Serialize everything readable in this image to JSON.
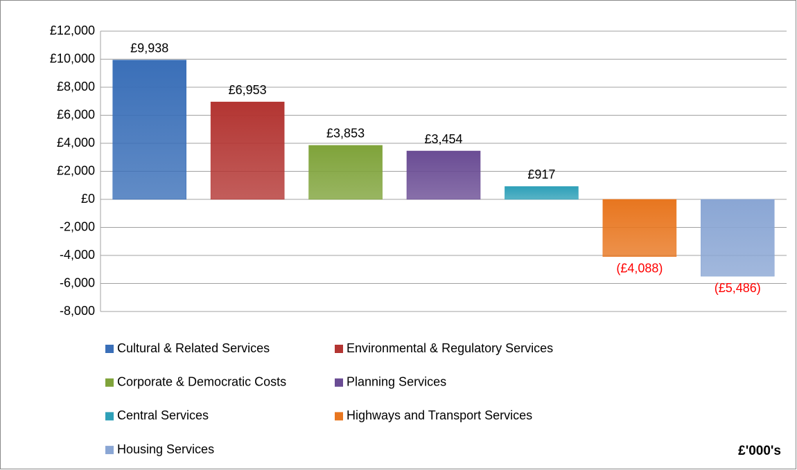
{
  "chart_data": {
    "type": "bar",
    "series": [
      {
        "name": "Cultural & Related Services",
        "color": "#3a6fb8",
        "values": [
          9938
        ],
        "value_labels": [
          "£9,938"
        ]
      },
      {
        "name": "Environmental & Regulatory Services",
        "color": "#b33532",
        "values": [
          6953
        ],
        "value_labels": [
          "£6,953"
        ]
      },
      {
        "name": "Corporate & Democratic Costs",
        "color": "#7fa33a",
        "values": [
          3853
        ],
        "value_labels": [
          "£3,853"
        ]
      },
      {
        "name": "Planning Services",
        "color": "#6a4c94",
        "values": [
          3454
        ],
        "value_labels": [
          "£3,454"
        ]
      },
      {
        "name": "Central Services",
        "color": "#2ea0b8",
        "values": [
          917
        ],
        "value_labels": [
          "£917"
        ]
      },
      {
        "name": "Highways and Transport Services",
        "color": "#e8761f",
        "values": [
          -4088
        ],
        "value_labels": [
          "(£4,088)"
        ]
      },
      {
        "name": "Housing Services",
        "color": "#8aa6d4",
        "values": [
          -5486
        ],
        "value_labels": [
          "(£5,486)"
        ]
      }
    ],
    "ylim": [
      -8000,
      12000
    ],
    "yticks": [
      {
        "value": -8000,
        "label": "-8,000"
      },
      {
        "value": -6000,
        "label": "-6,000"
      },
      {
        "value": -4000,
        "label": "-4,000"
      },
      {
        "value": -2000,
        "label": "-2,000"
      },
      {
        "value": 0,
        "label": "£0"
      },
      {
        "value": 2000,
        "label": "£2,000"
      },
      {
        "value": 4000,
        "label": "£4,000"
      },
      {
        "value": 6000,
        "label": "£6,000"
      },
      {
        "value": 8000,
        "label": "£8,000"
      },
      {
        "value": 10000,
        "label": "£10,000"
      },
      {
        "value": 12000,
        "label": "£12,000"
      }
    ],
    "grid": true,
    "negative_label_color": "#ff0000",
    "legend": "bottom",
    "annotation": "£'000's"
  }
}
